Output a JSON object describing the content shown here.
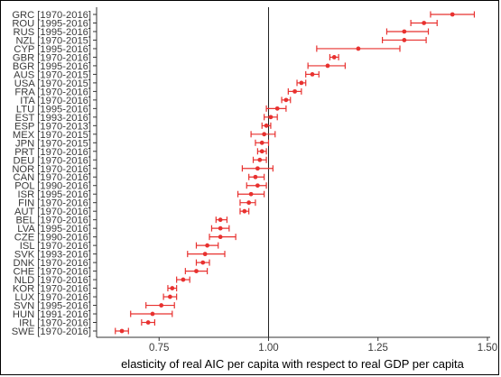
{
  "chart_data": {
    "type": "scatter",
    "subtype": "point-with-horizontal-error-bars",
    "xlabel": "elasticity of real AIC per capita with respect to real GDP per capita",
    "ylabel": "",
    "xlim": [
      0.6,
      1.5
    ],
    "x_ticks": [
      "0.75",
      "1.00",
      "1.25",
      "1.50"
    ],
    "reference_line_x": 1.0,
    "grid": false,
    "point_color": "#e8312f",
    "rows": [
      {
        "label": "GRC [1970-2016]",
        "estimate": 1.42,
        "lo": 1.37,
        "hi": 1.47
      },
      {
        "label": "ROU [1995-2016]",
        "estimate": 1.355,
        "lo": 1.325,
        "hi": 1.385
      },
      {
        "label": "RUS [1995-2016]",
        "estimate": 1.31,
        "lo": 1.27,
        "hi": 1.365
      },
      {
        "label": "NZL [1970-2015]",
        "estimate": 1.31,
        "lo": 1.26,
        "hi": 1.36
      },
      {
        "label": "CYP [1995-2016]",
        "estimate": 1.205,
        "lo": 1.11,
        "hi": 1.3
      },
      {
        "label": "GBR [1970-2016]",
        "estimate": 1.15,
        "lo": 1.14,
        "hi": 1.16
      },
      {
        "label": "BGR [1995-2016]",
        "estimate": 1.135,
        "lo": 1.09,
        "hi": 1.175
      },
      {
        "label": "AUS [1970-2015]",
        "estimate": 1.1,
        "lo": 1.085,
        "hi": 1.115
      },
      {
        "label": "USA [1970-2015]",
        "estimate": 1.075,
        "lo": 1.065,
        "hi": 1.085
      },
      {
        "label": "FRA [1970-2016]",
        "estimate": 1.06,
        "lo": 1.045,
        "hi": 1.075
      },
      {
        "label": "ITA [1970-2016]",
        "estimate": 1.04,
        "lo": 1.03,
        "hi": 1.05
      },
      {
        "label": "LTU [1995-2016]",
        "estimate": 1.02,
        "lo": 0.995,
        "hi": 1.04
      },
      {
        "label": "EST [1993-2016]",
        "estimate": 1.005,
        "lo": 0.99,
        "hi": 1.02
      },
      {
        "label": "ESP [1970-2013]",
        "estimate": 0.995,
        "lo": 0.985,
        "hi": 1.005
      },
      {
        "label": "MEX [1970-2015]",
        "estimate": 0.99,
        "lo": 0.96,
        "hi": 1.015
      },
      {
        "label": "JPN [1970-2015]",
        "estimate": 0.985,
        "lo": 0.97,
        "hi": 1.0
      },
      {
        "label": "PRT [1970-2016]",
        "estimate": 0.985,
        "lo": 0.975,
        "hi": 0.995
      },
      {
        "label": "DEU [1970-2016]",
        "estimate": 0.98,
        "lo": 0.965,
        "hi": 0.995
      },
      {
        "label": "NOR [1970-2016]",
        "estimate": 0.975,
        "lo": 0.94,
        "hi": 1.01
      },
      {
        "label": "CAN [1970-2016]",
        "estimate": 0.97,
        "lo": 0.955,
        "hi": 0.99
      },
      {
        "label": "POL [1990-2016]",
        "estimate": 0.975,
        "lo": 0.95,
        "hi": 0.995
      },
      {
        "label": "ISR [1995-2016]",
        "estimate": 0.96,
        "lo": 0.93,
        "hi": 0.99
      },
      {
        "label": "FIN [1970-2016]",
        "estimate": 0.955,
        "lo": 0.935,
        "hi": 0.97
      },
      {
        "label": "AUT [1970-2016]",
        "estimate": 0.945,
        "lo": 0.935,
        "hi": 0.955
      },
      {
        "label": "BEL [1970-2016]",
        "estimate": 0.89,
        "lo": 0.88,
        "hi": 0.905
      },
      {
        "label": "LVA [1995-2016]",
        "estimate": 0.89,
        "lo": 0.87,
        "hi": 0.91
      },
      {
        "label": "CZE [1990-2016]",
        "estimate": 0.89,
        "lo": 0.865,
        "hi": 0.925
      },
      {
        "label": "ISL [1970-2016]",
        "estimate": 0.86,
        "lo": 0.835,
        "hi": 0.885
      },
      {
        "label": "SVK [1993-2016]",
        "estimate": 0.855,
        "lo": 0.815,
        "hi": 0.9
      },
      {
        "label": "DNK [1970-2016]",
        "estimate": 0.85,
        "lo": 0.835,
        "hi": 0.865
      },
      {
        "label": "CHE [1970-2016]",
        "estimate": 0.835,
        "lo": 0.81,
        "hi": 0.86
      },
      {
        "label": "NLD [1970-2016]",
        "estimate": 0.805,
        "lo": 0.79,
        "hi": 0.82
      },
      {
        "label": "KOR [1970-2016]",
        "estimate": 0.78,
        "lo": 0.77,
        "hi": 0.79
      },
      {
        "label": "LUX [1970-2016]",
        "estimate": 0.775,
        "lo": 0.76,
        "hi": 0.79
      },
      {
        "label": "SVN [1995-2016]",
        "estimate": 0.755,
        "lo": 0.72,
        "hi": 0.785
      },
      {
        "label": "HUN [1991-2016]",
        "estimate": 0.735,
        "lo": 0.685,
        "hi": 0.78
      },
      {
        "label": "IRL [1970-2016]",
        "estimate": 0.725,
        "lo": 0.71,
        "hi": 0.74
      },
      {
        "label": "SWE [1970-2016]",
        "estimate": 0.665,
        "lo": 0.65,
        "hi": 0.68
      }
    ]
  }
}
